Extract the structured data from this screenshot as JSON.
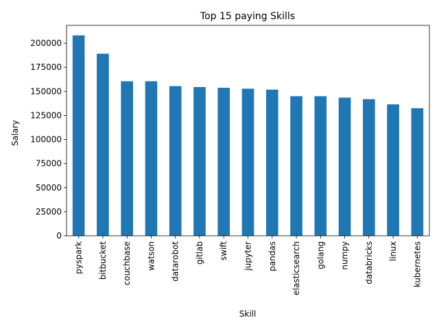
{
  "chart_data": {
    "type": "bar",
    "title": "Top 15 paying Skills",
    "xlabel": "Skill",
    "ylabel": "Salary",
    "categories": [
      "pyspark",
      "bitbucket",
      "couchbase",
      "watson",
      "datarobot",
      "gitlab",
      "swift",
      "jupyter",
      "pandas",
      "elasticsearch",
      "golang",
      "numpy",
      "databricks",
      "linux",
      "kubernetes"
    ],
    "values": [
      208172,
      189155,
      160515,
      160515,
      155486,
      154500,
      153750,
      152777,
      151821,
      145000,
      145000,
      143513,
      141907,
      136508,
      132500
    ],
    "ylim": [
      0,
      218581
    ],
    "yticks": [
      0,
      25000,
      50000,
      75000,
      100000,
      125000,
      150000,
      175000,
      200000
    ],
    "bar_color": "#1f77b4",
    "grid": false,
    "legend": "none"
  }
}
